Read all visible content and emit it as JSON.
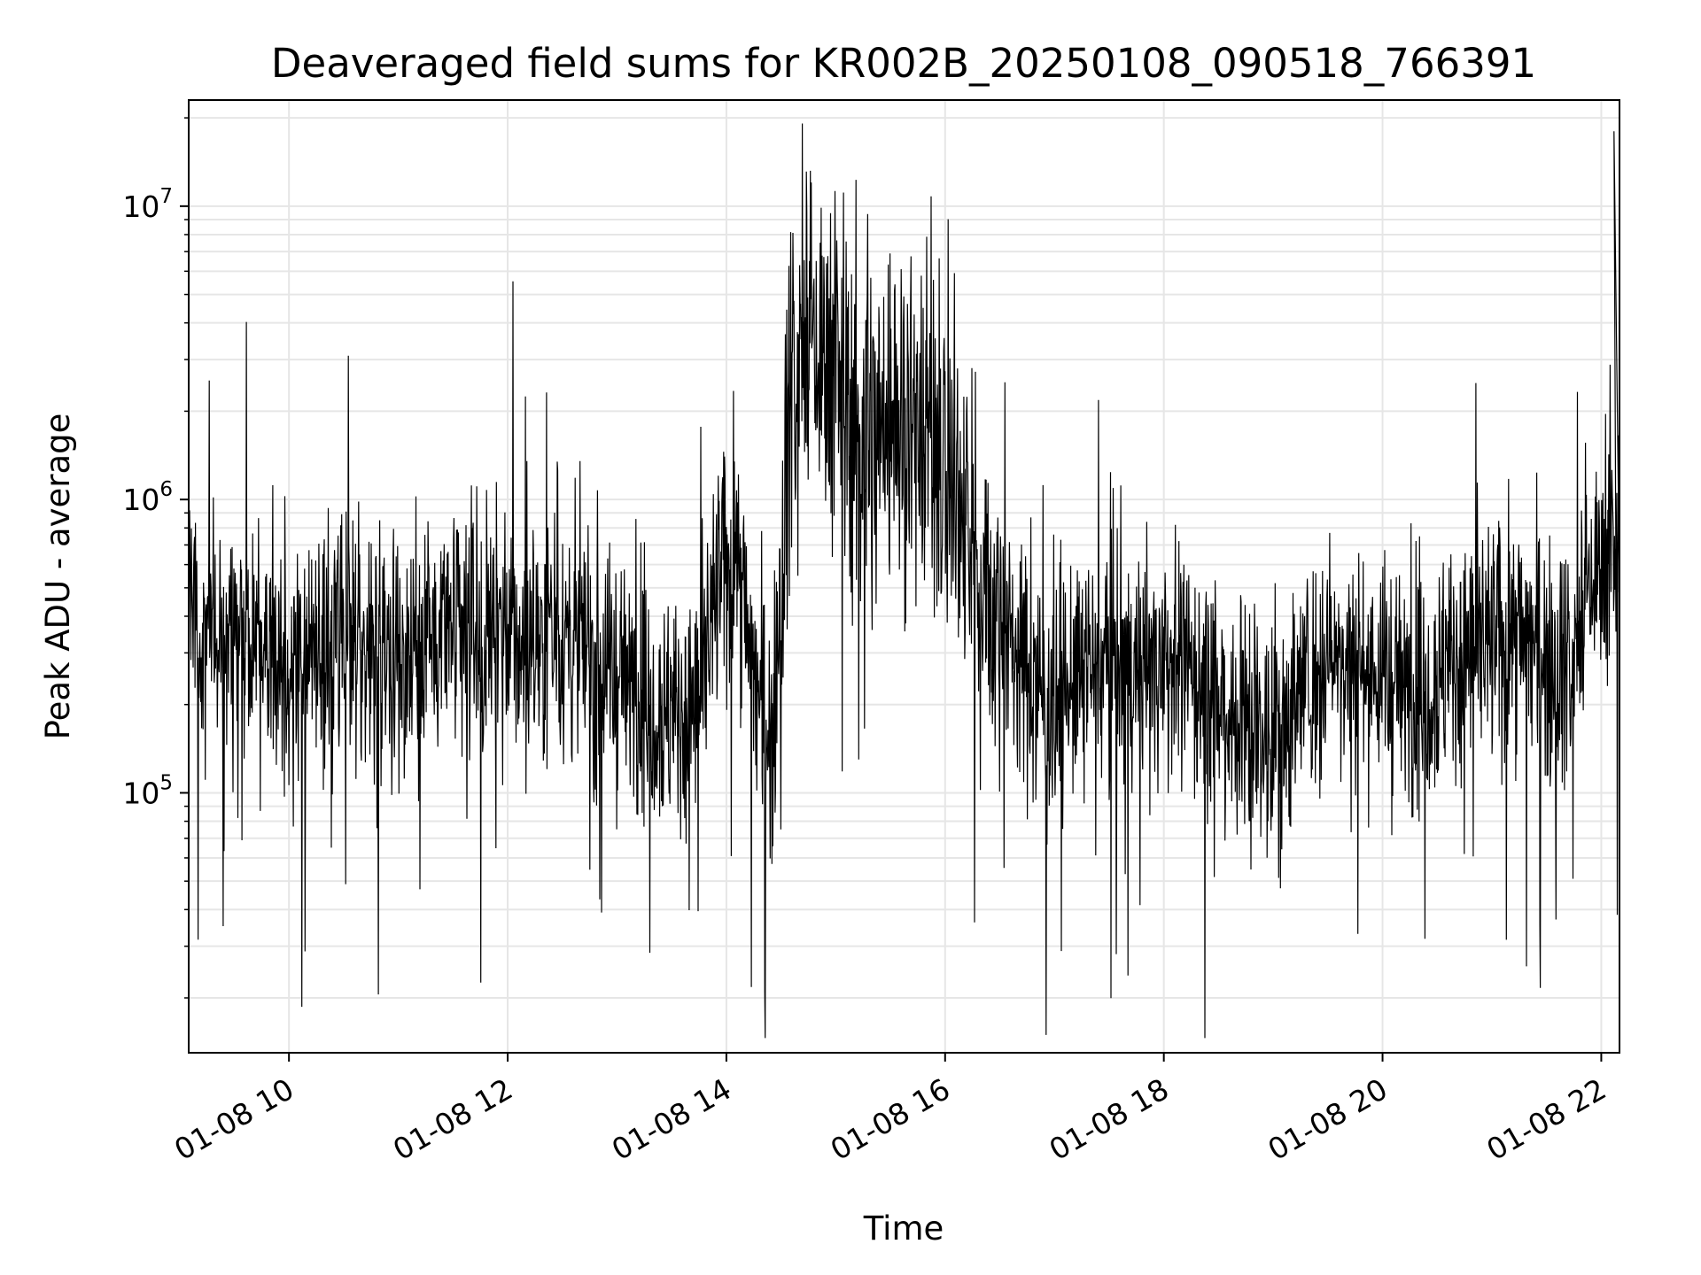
{
  "chart_data": {
    "type": "line",
    "title": "Deaveraged field sums for KR002B_20250108_090518_766391",
    "xlabel": "Time",
    "ylabel": "Peak ADU - average",
    "yscale": "log",
    "xlim": [
      "2025-01-08 09:05",
      "2025-01-08 22:10"
    ],
    "ylim": [
      13000,
      23000000
    ],
    "x_tick_labels": [
      "01-08 10",
      "01-08 12",
      "01-08 14",
      "01-08 16",
      "01-08 18",
      "01-08 20",
      "01-08 22"
    ],
    "y_tick_labels": [
      {
        "value": 100000,
        "base": "10",
        "exp": "5"
      },
      {
        "value": 1000000,
        "base": "10",
        "exp": "6"
      },
      {
        "value": 10000000,
        "base": "10",
        "exp": "7"
      }
    ],
    "grid": true,
    "line_color": "#000000",
    "grid_color": "#e6e6e6",
    "series": [
      {
        "x": [
          "2025-01-08 09:05",
          "2025-01-08 09:15",
          "2025-01-08 09:30",
          "2025-01-08 09:45",
          "2025-01-08 10:00",
          "2025-01-08 10:15",
          "2025-01-08 10:30",
          "2025-01-08 10:45",
          "2025-01-08 11:00",
          "2025-01-08 11:15",
          "2025-01-08 11:30",
          "2025-01-08 11:45",
          "2025-01-08 12:00",
          "2025-01-08 12:15",
          "2025-01-08 12:30",
          "2025-01-08 12:45",
          "2025-01-08 13:00",
          "2025-01-08 13:15",
          "2025-01-08 13:30",
          "2025-01-08 13:45",
          "2025-01-08 13:55",
          "2025-01-08 14:05",
          "2025-01-08 14:15",
          "2025-01-08 14:25",
          "2025-01-08 14:35",
          "2025-01-08 14:45",
          "2025-01-08 15:00",
          "2025-01-08 15:15",
          "2025-01-08 15:30",
          "2025-01-08 15:45",
          "2025-01-08 16:00",
          "2025-01-08 16:15",
          "2025-01-08 16:30",
          "2025-01-08 16:45",
          "2025-01-08 17:00",
          "2025-01-08 17:15",
          "2025-01-08 17:30",
          "2025-01-08 17:45",
          "2025-01-08 18:00",
          "2025-01-08 18:15",
          "2025-01-08 18:30",
          "2025-01-08 18:45",
          "2025-01-08 19:00",
          "2025-01-08 19:15",
          "2025-01-08 19:30",
          "2025-01-08 19:45",
          "2025-01-08 20:00",
          "2025-01-08 20:15",
          "2025-01-08 20:30",
          "2025-01-08 20:45",
          "2025-01-08 21:00",
          "2025-01-08 21:15",
          "2025-01-08 21:30",
          "2025-01-08 21:45",
          "2025-01-08 21:55",
          "2025-01-08 22:05",
          "2025-01-08 22:10"
        ],
        "y": [
          400000,
          350000,
          300000,
          320000,
          280000,
          260000,
          300000,
          320000,
          300000,
          330000,
          350000,
          320000,
          330000,
          320000,
          340000,
          300000,
          250000,
          220000,
          180000,
          200000,
          500000,
          700000,
          250000,
          150000,
          2500000,
          3500000,
          2500000,
          1500000,
          2000000,
          2000000,
          1500000,
          600000,
          400000,
          250000,
          200000,
          250000,
          280000,
          250000,
          300000,
          260000,
          200000,
          180000,
          150000,
          220000,
          300000,
          280000,
          250000,
          220000,
          250000,
          300000,
          320000,
          350000,
          300000,
          280000,
          550000,
          600000,
          550000
        ]
      }
    ]
  }
}
